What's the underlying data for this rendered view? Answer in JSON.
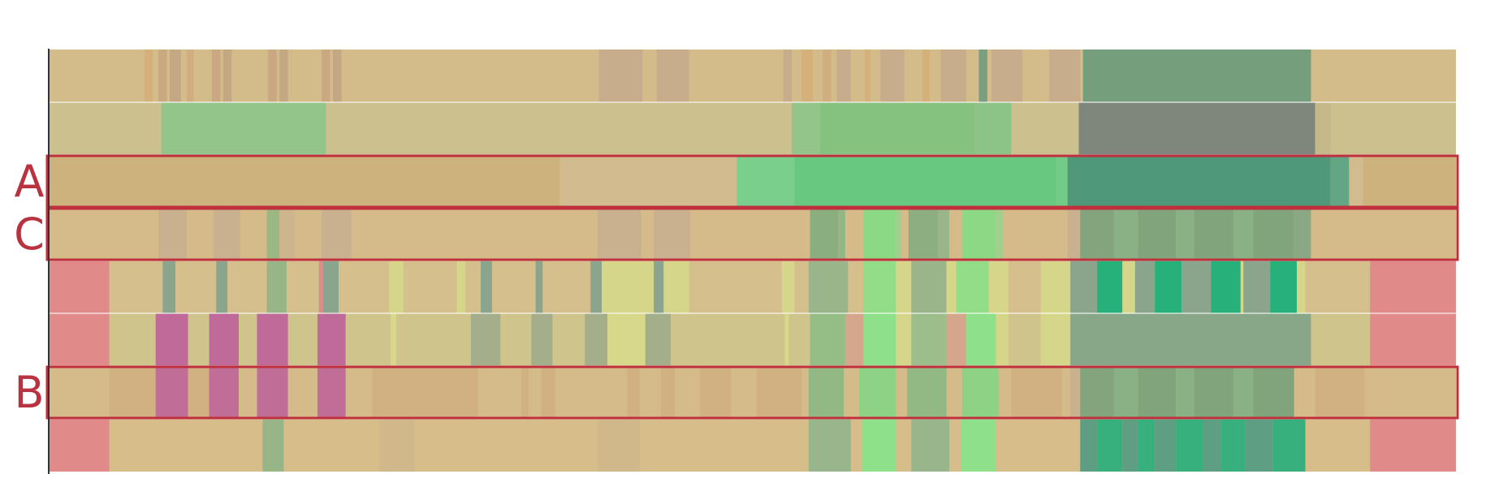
{
  "chart_data": {
    "type": "heatmap",
    "title": "",
    "xlabel": "",
    "ylabel": "",
    "xlim": [
      0,
      100
    ],
    "row_labels": [
      "",
      "",
      "A",
      "C",
      "",
      "",
      "B",
      ""
    ],
    "highlighted_rows": [
      2,
      3,
      6
    ],
    "highlight_color": "#c0303c",
    "rows": [
      {
        "base": "#d4bb8a",
        "segments": [
          [
            6.8,
            7.4,
            "#d4b07a"
          ],
          [
            7.8,
            8.4,
            "#c9a882"
          ],
          [
            8.6,
            9.4,
            "#c4a883"
          ],
          [
            9.8,
            10.3,
            "#d0ae80"
          ],
          [
            11.6,
            12.2,
            "#c9a882"
          ],
          [
            12.4,
            13.0,
            "#c4a883"
          ],
          [
            15.6,
            16.2,
            "#c9a882"
          ],
          [
            16.4,
            17.0,
            "#c4a883"
          ],
          [
            19.4,
            20.0,
            "#c9a882"
          ],
          [
            20.2,
            20.8,
            "#c4a883"
          ],
          [
            39.1,
            42.2,
            "#c8ad8c"
          ],
          [
            43.2,
            45.5,
            "#c8ad8c"
          ],
          [
            52.2,
            52.8,
            "#c8ad8c"
          ],
          [
            53.5,
            54.3,
            "#d4b07a"
          ],
          [
            55.0,
            55.6,
            "#d0ae80"
          ],
          [
            56.0,
            57.0,
            "#c8ad8c"
          ],
          [
            58.0,
            58.4,
            "#d4b07a"
          ],
          [
            59.1,
            60.8,
            "#c8ad8c"
          ],
          [
            62.1,
            62.6,
            "#d4b07a"
          ],
          [
            63.4,
            65.2,
            "#c8ad8c"
          ],
          [
            66.1,
            66.7,
            "#7a9e80"
          ],
          [
            67.0,
            69.2,
            "#c8ad8c"
          ],
          [
            71.1,
            73.3,
            "#c8ad8c"
          ],
          [
            73.5,
            89.7,
            "#759e7d"
          ]
        ]
      },
      {
        "base": "#cbc08e",
        "segments": [
          [
            8.0,
            19.7,
            "#93c58a"
          ],
          [
            52.8,
            54.8,
            "#93c58a"
          ],
          [
            54.8,
            65.8,
            "#85c27f"
          ],
          [
            65.8,
            68.4,
            "#8cc386"
          ],
          [
            73.2,
            90.0,
            "#7f877c"
          ],
          [
            90.0,
            91.1,
            "#c4b98a"
          ]
        ]
      },
      {
        "base": "#d2bb8f",
        "segments": [
          [
            0,
            36.3,
            "#cdb27e"
          ],
          [
            48.9,
            53.0,
            "#7acf8c"
          ],
          [
            53.0,
            71.6,
            "#68c87f"
          ],
          [
            71.6,
            72.4,
            "#72cc88"
          ],
          [
            72.4,
            91.1,
            "#4f987a"
          ],
          [
            91.1,
            92.4,
            "#62a685"
          ],
          [
            93.4,
            100,
            "#cdb27e"
          ]
        ]
      },
      {
        "base": "#d5bb8a",
        "segments": [
          [
            7.8,
            9.8,
            "#c9b08e"
          ],
          [
            11.7,
            13.6,
            "#c9b08e"
          ],
          [
            15.5,
            16.4,
            "#9bb884"
          ],
          [
            16.4,
            17.5,
            "#cdb58d"
          ],
          [
            19.4,
            21.5,
            "#c9b08e"
          ],
          [
            39.0,
            42.1,
            "#c9b08e"
          ],
          [
            43.0,
            45.6,
            "#c9b08e"
          ],
          [
            54.1,
            56.1,
            "#8bae7f"
          ],
          [
            56.1,
            56.6,
            "#93b685"
          ],
          [
            57.9,
            60.2,
            "#8bd985"
          ],
          [
            60.2,
            60.6,
            "#a3cf8c"
          ],
          [
            61.1,
            63.2,
            "#8cae80"
          ],
          [
            63.2,
            64.0,
            "#9ab588"
          ],
          [
            64.9,
            67.3,
            "#8bd985"
          ],
          [
            67.3,
            67.8,
            "#a3cf8c"
          ],
          [
            72.4,
            73.3,
            "#c9b08e"
          ],
          [
            73.3,
            75.7,
            "#84a47e"
          ],
          [
            75.7,
            77.4,
            "#8ab085"
          ],
          [
            77.4,
            80.1,
            "#82a47d"
          ],
          [
            80.1,
            81.4,
            "#8ab085"
          ],
          [
            81.4,
            84.2,
            "#82a47d"
          ],
          [
            84.2,
            85.6,
            "#8ab085"
          ],
          [
            85.6,
            88.5,
            "#82a47d"
          ],
          [
            88.5,
            89.7,
            "#8aa883"
          ]
        ]
      },
      {
        "base": "#d5c08d",
        "segments": [
          [
            0,
            4.3,
            "#e08a8a"
          ],
          [
            8.1,
            9.0,
            "#8aa58c"
          ],
          [
            11.9,
            12.7,
            "#8aa58c"
          ],
          [
            15.5,
            16.9,
            "#98b587"
          ],
          [
            19.2,
            19.5,
            "#e08a8a"
          ],
          [
            19.5,
            20.6,
            "#8aa58c"
          ],
          [
            24.2,
            25.2,
            "#d6d68a"
          ],
          [
            29.0,
            29.6,
            "#d6d68a"
          ],
          [
            30.7,
            31.5,
            "#8aa58c"
          ],
          [
            34.6,
            35.1,
            "#8aa58c"
          ],
          [
            38.5,
            39.3,
            "#8aa58c"
          ],
          [
            39.3,
            43.0,
            "#d6d68a"
          ],
          [
            43.0,
            43.7,
            "#8aa58c"
          ],
          [
            43.7,
            45.5,
            "#d6d68a"
          ],
          [
            52.1,
            53.0,
            "#d6d68a"
          ],
          [
            54.0,
            56.8,
            "#9ab58a"
          ],
          [
            57.9,
            60.2,
            "#93dc88"
          ],
          [
            60.2,
            61.3,
            "#d6d68a"
          ],
          [
            61.3,
            63.8,
            "#9ab58a"
          ],
          [
            63.8,
            64.5,
            "#d6d68a"
          ],
          [
            64.5,
            66.8,
            "#93dc88"
          ],
          [
            66.8,
            68.2,
            "#d6d68a"
          ],
          [
            70.5,
            72.6,
            "#d6d68a"
          ],
          [
            72.6,
            74.5,
            "#8aa58c"
          ],
          [
            74.5,
            76.3,
            "#28b07a"
          ],
          [
            76.3,
            77.2,
            "#d6d68a"
          ],
          [
            77.2,
            78.6,
            "#8aa58c"
          ],
          [
            78.6,
            80.5,
            "#28b07a"
          ],
          [
            80.5,
            82.6,
            "#8aa58c"
          ],
          [
            82.6,
            84.7,
            "#28b07a"
          ],
          [
            84.7,
            84.9,
            "#d6d68a"
          ],
          [
            84.9,
            86.8,
            "#8aa58c"
          ],
          [
            86.8,
            88.7,
            "#28b07a"
          ],
          [
            88.7,
            89.3,
            "#d6d68a"
          ],
          [
            93.9,
            100,
            "#e08a8a"
          ]
        ]
      },
      {
        "base": "#cfc48c",
        "segments": [
          [
            0,
            4.3,
            "#e08a8a"
          ],
          [
            7.6,
            9.9,
            "#bf6a98"
          ],
          [
            11.4,
            13.5,
            "#bf6a98"
          ],
          [
            14.8,
            17.0,
            "#bf6a98"
          ],
          [
            19.1,
            21.1,
            "#bf6a98"
          ],
          [
            24.3,
            24.7,
            "#d8d88a"
          ],
          [
            30.0,
            32.1,
            "#a5ae8b"
          ],
          [
            34.3,
            35.8,
            "#a5ae8b"
          ],
          [
            38.1,
            39.7,
            "#a5ae8b"
          ],
          [
            39.7,
            42.4,
            "#d8d88a"
          ],
          [
            42.4,
            44.2,
            "#a5ae8b"
          ],
          [
            52.3,
            52.6,
            "#d8d88a"
          ],
          [
            54.1,
            56.6,
            "#95be86"
          ],
          [
            56.6,
            57.9,
            "#d4a68c"
          ],
          [
            57.9,
            60.2,
            "#8ee08a"
          ],
          [
            60.2,
            61.3,
            "#d6d68a"
          ],
          [
            61.3,
            63.8,
            "#9bbe8b"
          ],
          [
            63.8,
            65.2,
            "#d4a68c"
          ],
          [
            65.2,
            67.3,
            "#8ee08a"
          ],
          [
            67.3,
            68.2,
            "#d6d68a"
          ],
          [
            70.5,
            72.6,
            "#d6d68a"
          ],
          [
            72.6,
            89.7,
            "#88a688"
          ],
          [
            93.9,
            100,
            "#e08a8a"
          ]
        ]
      },
      {
        "base": "#d5bb8a",
        "segments": [
          [
            4.3,
            7.6,
            "#d1b182"
          ],
          [
            7.6,
            9.9,
            "#c06e98"
          ],
          [
            9.9,
            11.4,
            "#d1b182"
          ],
          [
            11.4,
            13.5,
            "#c06e98"
          ],
          [
            14.8,
            17.0,
            "#c06e98"
          ],
          [
            19.1,
            21.1,
            "#c06e98"
          ],
          [
            23.0,
            30.5,
            "#d1b182"
          ],
          [
            33.6,
            34.1,
            "#d1b182"
          ],
          [
            35.0,
            36.0,
            "#d1b182"
          ],
          [
            41.1,
            42.0,
            "#d1b182"
          ],
          [
            43.5,
            44.5,
            "#d1b182"
          ],
          [
            46.3,
            48.5,
            "#d1b182"
          ],
          [
            50.3,
            53.5,
            "#d1b182"
          ],
          [
            54.0,
            56.5,
            "#92b883"
          ],
          [
            57.6,
            60.2,
            "#8ed385"
          ],
          [
            61.0,
            63.8,
            "#92b883"
          ],
          [
            64.9,
            67.5,
            "#8ed385"
          ],
          [
            68.4,
            72.0,
            "#d1b182"
          ],
          [
            72.6,
            73.3,
            "#c9b08e"
          ],
          [
            73.3,
            75.7,
            "#84a47e"
          ],
          [
            75.7,
            77.4,
            "#8ab085"
          ],
          [
            77.4,
            80.1,
            "#82a47d"
          ],
          [
            80.1,
            81.4,
            "#8ab085"
          ],
          [
            81.4,
            84.2,
            "#82a47d"
          ],
          [
            84.2,
            85.6,
            "#8ab085"
          ],
          [
            85.6,
            88.5,
            "#82a47d"
          ],
          [
            90.0,
            93.5,
            "#d1b182"
          ]
        ]
      },
      {
        "base": "#d6bd8a",
        "segments": [
          [
            0,
            4.3,
            "#e08a8a"
          ],
          [
            15.2,
            16.7,
            "#98b587"
          ],
          [
            23.5,
            26.0,
            "#d1b88a"
          ],
          [
            39.0,
            42.0,
            "#d1b88a"
          ],
          [
            54.0,
            57.0,
            "#98b58c"
          ],
          [
            57.8,
            60.2,
            "#8ee08a"
          ],
          [
            61.3,
            64.0,
            "#98b58c"
          ],
          [
            64.8,
            67.3,
            "#8ee08a"
          ],
          [
            73.3,
            74.5,
            "#5e9e82"
          ],
          [
            74.5,
            76.3,
            "#38b07e"
          ],
          [
            76.3,
            77.4,
            "#5e9e82"
          ],
          [
            77.4,
            78.6,
            "#38b07e"
          ],
          [
            78.6,
            80.1,
            "#5e9e82"
          ],
          [
            80.1,
            82.0,
            "#38b07e"
          ],
          [
            82.0,
            83.3,
            "#5e9e82"
          ],
          [
            83.3,
            85.0,
            "#38b07e"
          ],
          [
            85.0,
            87.0,
            "#5e9e82"
          ],
          [
            87.0,
            89.3,
            "#38b07e"
          ],
          [
            93.9,
            100,
            "#e08a8a"
          ]
        ]
      }
    ]
  }
}
